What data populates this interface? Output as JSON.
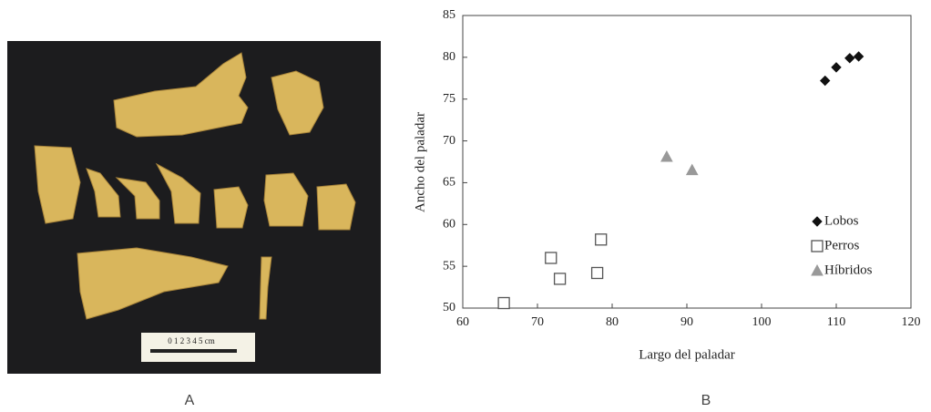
{
  "photo": {
    "scale_label": "0 1 2 3 4 5 cm"
  },
  "panels": [
    "A",
    "B"
  ],
  "chart_data": {
    "type": "scatter",
    "x_label": "Largo del paladar",
    "y_label": "Ancho del paladar",
    "xlim": [
      60,
      120
    ],
    "xticks": [
      60,
      70,
      80,
      90,
      100,
      110,
      120
    ],
    "ylim": [
      50,
      85
    ],
    "yticks": [
      50,
      55,
      60,
      65,
      70,
      75,
      80,
      85
    ],
    "legend": "right",
    "series": [
      {
        "name": "Lobos",
        "color": "#111111",
        "marker": "diamond",
        "filled": true,
        "x": [
          108.5,
          110,
          111.8,
          113
        ],
        "values": [
          77.2,
          78.8,
          79.9,
          80.1
        ]
      },
      {
        "name": "Perros",
        "color": "#555555",
        "marker": "square",
        "filled": false,
        "x": [
          65.5,
          71.8,
          73,
          78,
          78.5
        ],
        "values": [
          50.6,
          56,
          53.5,
          54.2,
          58.2
        ]
      },
      {
        "name": "Híbridos",
        "color": "#999999",
        "marker": "triangle",
        "filled": true,
        "x": [
          87.3,
          90.7
        ],
        "values": [
          68.1,
          66.5
        ]
      }
    ]
  }
}
